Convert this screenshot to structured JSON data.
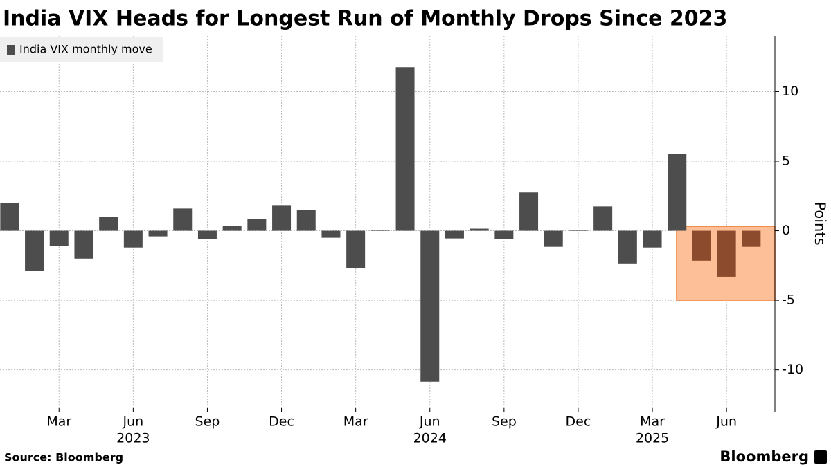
{
  "chart_data": {
    "type": "bar",
    "title": "India VIX Heads for Longest Run of Monthly Drops Since 2023",
    "y_label": "Points",
    "source": "Source: Bloomberg",
    "brand": "Bloomberg",
    "x": [
      "2023-01",
      "2023-02",
      "2023-03",
      "2023-04",
      "2023-05",
      "2023-06",
      "2023-07",
      "2023-08",
      "2023-09",
      "2023-10",
      "2023-11",
      "2023-12",
      "2024-01",
      "2024-02",
      "2024-03",
      "2024-04",
      "2024-05",
      "2024-06",
      "2024-07",
      "2024-08",
      "2024-09",
      "2024-10",
      "2024-11",
      "2024-12",
      "2025-01",
      "2025-02",
      "2025-03",
      "2025-04",
      "2025-05",
      "2025-06",
      "2025-07"
    ],
    "series": [
      {
        "name": "India VIX monthly move",
        "color": "#4d4d4d",
        "values": [
          2.0,
          -2.9,
          -1.1,
          -2.0,
          1.0,
          -1.2,
          -0.4,
          1.6,
          -0.6,
          0.35,
          0.85,
          1.8,
          1.5,
          -0.5,
          -2.7,
          0.05,
          11.75,
          -10.85,
          -0.55,
          0.15,
          -0.6,
          2.75,
          -1.15,
          0.05,
          1.75,
          -2.35,
          -1.2,
          5.5,
          -2.15,
          -3.3,
          -1.15
        ],
        "colors": [
          "#4d4d4d",
          "#4d4d4d",
          "#4d4d4d",
          "#4d4d4d",
          "#4d4d4d",
          "#4d4d4d",
          "#4d4d4d",
          "#4d4d4d",
          "#4d4d4d",
          "#4d4d4d",
          "#4d4d4d",
          "#4d4d4d",
          "#4d4d4d",
          "#4d4d4d",
          "#4d4d4d",
          "#4d4d4d",
          "#4d4d4d",
          "#4d4d4d",
          "#4d4d4d",
          "#4d4d4d",
          "#4d4d4d",
          "#4d4d4d",
          "#4d4d4d",
          "#4d4d4d",
          "#4d4d4d",
          "#4d4d4d",
          "#4d4d4d",
          "#4d4d4d",
          "#8b4b2c",
          "#8b4b2c",
          "#8b4b2c"
        ]
      }
    ],
    "xticks": [
      {
        "value": "2023-03",
        "label": "Mar"
      },
      {
        "value": "2023-06",
        "label": "Jun"
      },
      {
        "value": "2023-09",
        "label": "Sep"
      },
      {
        "value": "2023-12",
        "label": "Dec"
      },
      {
        "value": "2024-03",
        "label": "Mar"
      },
      {
        "value": "2024-06",
        "label": "Jun"
      },
      {
        "value": "2024-09",
        "label": "Sep"
      },
      {
        "value": "2024-12",
        "label": "Dec"
      },
      {
        "value": "2025-03",
        "label": "Mar"
      },
      {
        "value": "2025-06",
        "label": "Jun"
      }
    ],
    "year_ticks": [
      {
        "value": "2023-06",
        "label": "2023"
      },
      {
        "value": "2024-06",
        "label": "2024"
      },
      {
        "value": "2025-03",
        "label": "2025"
      }
    ],
    "ylim": [
      -13,
      14
    ],
    "yticks": [
      -10,
      -5,
      0,
      5,
      10
    ],
    "grid": true
  }
}
